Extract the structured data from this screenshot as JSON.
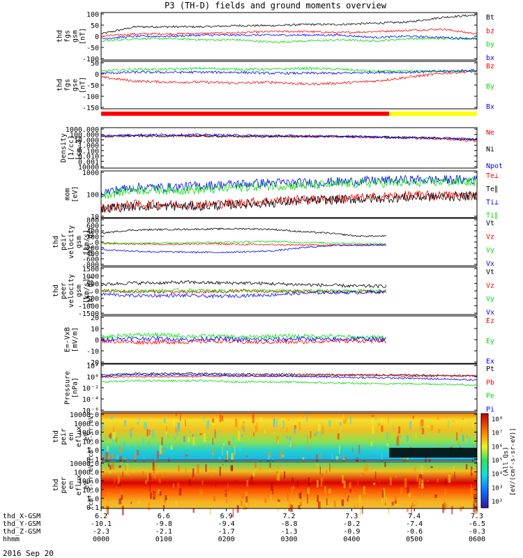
{
  "chart_data": {
    "type": "line",
    "title": "P3 (TH-D) fields and ground moments overview",
    "date": "2016 Sep 20",
    "colors": {
      "black": "#000000",
      "red": "#ff0000",
      "green": "#00dd00",
      "blue": "#0000ff"
    },
    "orbit_labels": [
      "thd_X-GSM",
      "thd_Y-GSM",
      "thd_Z-GSM",
      "hhmm"
    ],
    "x_axis": {
      "x": [
        "0000",
        "0100",
        "0200",
        "0300",
        "0400",
        "0500",
        "0600"
      ],
      "rows": [
        [
          "6.2",
          "6.6",
          "6.9",
          "7.2",
          "7.3",
          "7.4",
          "7.3"
        ],
        [
          "-10.1",
          "-9.8",
          "-9.4",
          "-8.8",
          "-8.2",
          "-7.4",
          "-6.5"
        ],
        [
          "-2.3",
          "-2.1",
          "-1.7",
          "-1.3",
          "-0.9",
          "-0.6",
          "-0.3"
        ],
        [
          "0000",
          "0100",
          "0200",
          "0300",
          "0400",
          "0500",
          "0600"
        ]
      ]
    },
    "panels": [
      {
        "id": "fgs-gsm",
        "ylabel": [
          "thd",
          "fgs",
          "gsm",
          "[nT]"
        ],
        "yticks": [
          "100",
          "50",
          "0",
          "-50",
          "-100"
        ],
        "ylim": [
          -100,
          100
        ],
        "log": false,
        "series": [
          {
            "name": "Bt",
            "color": "black",
            "values": [
              10,
              40,
              40,
              40,
              45,
              45,
              50,
              50,
              55,
              60,
              80,
              90
            ]
          },
          {
            "name": "bz",
            "color": "red",
            "values": [
              0,
              10,
              10,
              12,
              15,
              20,
              20,
              15,
              20,
              25,
              30,
              10
            ]
          },
          {
            "name": "by",
            "color": "green",
            "values": [
              -20,
              -10,
              -10,
              -15,
              -15,
              -25,
              -20,
              -15,
              -20,
              -10,
              -10,
              -10
            ]
          },
          {
            "name": "bx",
            "color": "blue",
            "values": [
              -10,
              0,
              0,
              5,
              5,
              5,
              5,
              5,
              -5,
              0,
              -5,
              -10
            ]
          }
        ]
      },
      {
        "id": "fgs-gse",
        "ylabel": [
          "thd",
          "fgs",
          "gse",
          "[nT]"
        ],
        "yticks": [
          "50",
          "0",
          "-50",
          "-100",
          "-150"
        ],
        "ylim": [
          -180,
          60
        ],
        "log": false,
        "series": [
          {
            "name": "Bz",
            "color": "red",
            "values": [
              -20,
              -40,
              -45,
              -45,
              -50,
              -45,
              -55,
              -50,
              -40,
              -20,
              0,
              10
            ]
          },
          {
            "name": "By",
            "color": "green",
            "values": [
              10,
              20,
              20,
              25,
              20,
              20,
              25,
              20,
              10,
              10,
              10,
              10
            ]
          },
          {
            "name": "Bx",
            "color": "blue",
            "values": [
              0,
              5,
              5,
              5,
              5,
              0,
              0,
              0,
              5,
              5,
              10,
              15
            ]
          }
        ]
      },
      {
        "id": "density",
        "ylabel": [
          "Density",
          "[1/cc]",
          "[cm-3]"
        ],
        "yticks": [
          "1000.000",
          "100.000",
          "10.000",
          "1.000",
          "0.100",
          "0.010",
          "0.001",
          "10000"
        ],
        "ylim": [
          0.0001,
          1000
        ],
        "log": true,
        "series": [
          {
            "name": "Ne",
            "color": "red",
            "values": [
              30,
              40,
              40,
              40,
              30,
              30,
              30,
              25,
              20,
              15,
              10,
              5
            ]
          },
          {
            "name": "Ni",
            "color": "black",
            "values": [
              30,
              35,
              35,
              35,
              30,
              30,
              30,
              30,
              25,
              20,
              15,
              8
            ]
          },
          {
            "name": "Npot",
            "color": "blue",
            "values": [
              40,
              60,
              60,
              60,
              50,
              40,
              40,
              30,
              25,
              20,
              15,
              10
            ]
          }
        ]
      },
      {
        "id": "mom-temps",
        "ylabel": [
          "mom",
          "[eV]"
        ],
        "yticks": [
          "1000",
          "100",
          "10"
        ],
        "ylim": [
          10,
          3000
        ],
        "log": true,
        "series": [
          {
            "name": "Te⊥",
            "color": "red",
            "values": [
              30,
              50,
              50,
              50,
              60,
              80,
              90,
              100,
              120,
              150,
              150,
              150
            ]
          },
          {
            "name": "Te∥",
            "color": "black",
            "values": [
              30,
              40,
              40,
              40,
              50,
              60,
              80,
              90,
              100,
              120,
              130,
              140
            ]
          },
          {
            "name": "Ti⊥",
            "color": "blue",
            "values": [
              200,
              400,
              400,
              500,
              600,
              700,
              700,
              800,
              900,
              1000,
              1000,
              1000
            ]
          },
          {
            "name": "Ti∥",
            "color": "green",
            "values": [
              150,
              300,
              300,
              300,
              400,
              500,
              500,
              600,
              700,
              700,
              800,
              800
            ]
          }
        ]
      },
      {
        "id": "peir-velocity",
        "ylabel": [
          "thd",
          "peir",
          "velocity",
          "gsm",
          "[km/s]"
        ],
        "sublabel": "(All Qs)",
        "yticks": [
          "800",
          "600",
          "400",
          "200",
          "0",
          "-200",
          "-400",
          "-600",
          "-800"
        ],
        "ylim": [
          -800,
          800
        ],
        "log": false,
        "xmax": 4.55,
        "series": [
          {
            "name": "Vt",
            "color": "black",
            "values": [
              300,
              400,
              420,
              430,
              440,
              450,
              430,
              350,
              300,
              200,
              200
            ]
          },
          {
            "name": "Vz",
            "color": "red",
            "values": [
              -50,
              -60,
              -70,
              -70,
              -60,
              -80,
              -90,
              -100,
              -100,
              -100,
              -100
            ]
          },
          {
            "name": "Vy",
            "color": "green",
            "values": [
              -20,
              -40,
              -30,
              -20,
              -10,
              0,
              20,
              -10,
              -30,
              -50,
              -60
            ]
          },
          {
            "name": "Vx",
            "color": "blue",
            "values": [
              -250,
              -300,
              -330,
              -340,
              -350,
              -330,
              -300,
              -200,
              -120,
              -100,
              -100
            ]
          }
        ]
      },
      {
        "id": "peer-velocity",
        "ylabel": [
          "thd",
          "peer",
          "velocity",
          "gsm",
          "[km/s]"
        ],
        "sublabel": "(All Qs)",
        "yticks": [
          "1500",
          "1000",
          "500",
          "0",
          "-500",
          "-1000",
          "-1500"
        ],
        "ylim": [
          -1500,
          1500
        ],
        "log": false,
        "xmax": 4.55,
        "series": [
          {
            "name": "Vt",
            "color": "black",
            "values": [
              400,
              500,
              500,
              550,
              500,
              500,
              450,
              400,
              350,
              300,
              300
            ]
          },
          {
            "name": "Vz",
            "color": "red",
            "values": [
              0,
              -50,
              -50,
              -100,
              -50,
              0,
              -50,
              -50,
              -50,
              -50,
              -50
            ]
          },
          {
            "name": "Vy",
            "color": "green",
            "values": [
              0,
              0,
              0,
              50,
              0,
              0,
              0,
              0,
              0,
              0,
              0
            ]
          },
          {
            "name": "Vx",
            "color": "blue",
            "values": [
              -200,
              -300,
              -300,
              -300,
              -350,
              -300,
              -250,
              -150,
              -100,
              -100,
              -50
            ]
          }
        ]
      },
      {
        "id": "efield",
        "ylabel": [
          "E=-VxB",
          "[mV/m]"
        ],
        "yticks": [
          "20",
          "10",
          "0",
          "-10",
          "-20"
        ],
        "ylim": [
          -20,
          20
        ],
        "log": false,
        "xmax": 4.55,
        "series": [
          {
            "name": "Ez",
            "color": "red",
            "values": [
              -1,
              -2,
              -2,
              -2,
              -1,
              -2,
              -2,
              -2,
              -1,
              -1,
              -1
            ]
          },
          {
            "name": "Ey",
            "color": "green",
            "values": [
              2,
              4,
              4,
              3,
              3,
              2,
              3,
              3,
              3,
              2,
              2
            ]
          },
          {
            "name": "Ex",
            "color": "blue",
            "values": [
              0,
              1,
              1,
              0,
              1,
              0,
              0,
              1,
              0,
              1,
              0
            ]
          }
        ]
      },
      {
        "id": "pressure",
        "ylabel": [
          "Pressure",
          "[nPa]"
        ],
        "yticks": [
          "10²",
          "10⁰",
          "10⁻²",
          "10⁻⁴",
          "10⁻⁶"
        ],
        "ylim": [
          1e-06,
          100
        ],
        "log": true,
        "series": [
          {
            "name": "Pt",
            "color": "black",
            "values": [
              1.5,
              2.5,
              2.5,
              2.5,
              2.0,
              2.0,
              1.8,
              1.6,
              1.5,
              1.4,
              1.2,
              1.0
            ]
          },
          {
            "name": "Pb",
            "color": "red",
            "values": [
              0.6,
              0.8,
              0.8,
              0.9,
              1.0,
              1.0,
              1.0,
              1.2,
              1.2,
              1.0,
              1.0,
              1.0
            ]
          },
          {
            "name": "Pe",
            "color": "green",
            "values": [
              0.1,
              0.15,
              0.15,
              0.15,
              0.1,
              0.1,
              0.08,
              0.06,
              0.05,
              0.05,
              0.04,
              0.03
            ]
          },
          {
            "name": "Pi",
            "color": "blue",
            "values": [
              1.0,
              1.5,
              1.5,
              1.5,
              1.0,
              1.0,
              0.8,
              0.6,
              0.5,
              0.4,
              0.3,
              0.2
            ]
          }
        ]
      },
      {
        "id": "peir-spectrogram",
        "type": "heatmap",
        "ylabel": [
          "thd",
          "peir",
          "en",
          "eflux",
          "eV"
        ],
        "unit_label": "(cm²-s-sr-eV)",
        "yticks": [
          "10000.0",
          "1000.0",
          "100.0",
          "10.0",
          "1.0",
          "0.1"
        ],
        "ylim": [
          0.1,
          30000
        ],
        "log": true
      },
      {
        "id": "peer-spectrogram",
        "type": "heatmap",
        "ylabel": [
          "thd",
          "peer",
          "en",
          "eflux",
          "eV"
        ],
        "unit_label": "(cm²-s-sr-eV)",
        "yticks": [
          "10000.0",
          "1000.0",
          "100.0",
          "10.0",
          "1.0",
          "0.1"
        ],
        "ylim": [
          0.1,
          30000
        ],
        "log": true
      }
    ],
    "colorbar": {
      "title": "[eV/(cm²-s-sr-eV)]",
      "sublabel": "(All Qs)",
      "ticks": [
        "10⁸",
        "10⁷",
        "10⁶",
        "10⁵",
        "10⁴",
        "10³",
        "10²"
      ]
    },
    "mode_bar": {
      "colors": [
        "red",
        "yellow"
      ],
      "switch_x": 4.6
    }
  }
}
